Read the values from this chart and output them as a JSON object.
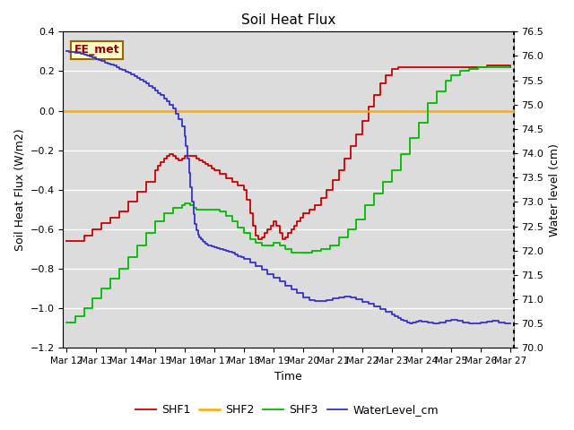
{
  "title": "Soil Heat Flux",
  "xlabel": "Time",
  "ylabel_left": "Soil Heat Flux (W/m2)",
  "ylabel_right": "Water level (cm)",
  "ylim_left": [
    -1.2,
    0.4
  ],
  "ylim_right": [
    70.0,
    76.5
  ],
  "bg_color": "#dcdcdc",
  "legend_label": "EE_met",
  "x_ticks": [
    "Mar 12",
    "Mar 13",
    "Mar 14",
    "Mar 15",
    "Mar 16",
    "Mar 17",
    "Mar 18",
    "Mar 19",
    "Mar 20",
    "Mar 21",
    "Mar 22",
    "Mar 23",
    "Mar 24",
    "Mar 25",
    "Mar 26",
    "Mar 27"
  ],
  "shf1_color": "#cc0000",
  "shf2_color": "#ffaa00",
  "shf3_color": "#00bb00",
  "wl_color": "#3333cc",
  "shf1_x": [
    0,
    0.3,
    0.6,
    0.9,
    1.2,
    1.5,
    1.8,
    2.1,
    2.4,
    2.7,
    3.0,
    3.1,
    3.2,
    3.3,
    3.4,
    3.5,
    3.6,
    3.7,
    3.8,
    3.9,
    4.0,
    4.1,
    4.2,
    4.3,
    4.4,
    4.5,
    4.6,
    4.7,
    4.8,
    4.9,
    5.0,
    5.2,
    5.4,
    5.6,
    5.8,
    6.0,
    6.1,
    6.2,
    6.3,
    6.4,
    6.5,
    6.6,
    6.7,
    6.8,
    6.9,
    7.0,
    7.1,
    7.2,
    7.3,
    7.4,
    7.5,
    7.6,
    7.7,
    7.8,
    7.9,
    8.0,
    8.2,
    8.4,
    8.6,
    8.8,
    9.0,
    9.2,
    9.4,
    9.6,
    9.8,
    10.0,
    10.2,
    10.4,
    10.6,
    10.8,
    11.0,
    11.2,
    11.4,
    11.6,
    11.8,
    12.0,
    12.2,
    12.5,
    12.8,
    13.0,
    13.2,
    13.5,
    13.8,
    14.0,
    14.2,
    14.5,
    14.8,
    15.0
  ],
  "shf1_y": [
    -0.66,
    -0.66,
    -0.63,
    -0.6,
    -0.57,
    -0.54,
    -0.51,
    -0.46,
    -0.41,
    -0.36,
    -0.3,
    -0.28,
    -0.26,
    -0.24,
    -0.23,
    -0.22,
    -0.23,
    -0.24,
    -0.25,
    -0.24,
    -0.23,
    -0.23,
    -0.23,
    -0.23,
    -0.24,
    -0.25,
    -0.26,
    -0.27,
    -0.28,
    -0.29,
    -0.3,
    -0.32,
    -0.34,
    -0.36,
    -0.38,
    -0.4,
    -0.45,
    -0.52,
    -0.58,
    -0.63,
    -0.65,
    -0.64,
    -0.62,
    -0.6,
    -0.58,
    -0.56,
    -0.58,
    -0.62,
    -0.65,
    -0.64,
    -0.62,
    -0.6,
    -0.58,
    -0.56,
    -0.54,
    -0.52,
    -0.5,
    -0.48,
    -0.44,
    -0.4,
    -0.35,
    -0.3,
    -0.24,
    -0.18,
    -0.12,
    -0.05,
    0.02,
    0.08,
    0.14,
    0.18,
    0.21,
    0.22,
    0.22,
    0.22,
    0.22,
    0.22,
    0.22,
    0.22,
    0.22,
    0.22,
    0.22,
    0.22,
    0.22,
    0.22,
    0.23,
    0.23,
    0.23,
    0.22
  ],
  "shf3_x": [
    0,
    0.3,
    0.6,
    0.9,
    1.2,
    1.5,
    1.8,
    2.1,
    2.4,
    2.7,
    3.0,
    3.3,
    3.6,
    3.9,
    4.0,
    4.1,
    4.2,
    4.3,
    4.4,
    4.5,
    4.6,
    4.7,
    4.8,
    4.9,
    5.0,
    5.2,
    5.4,
    5.6,
    5.8,
    6.0,
    6.2,
    6.4,
    6.6,
    6.8,
    7.0,
    7.2,
    7.4,
    7.6,
    7.8,
    8.0,
    8.3,
    8.6,
    8.9,
    9.2,
    9.5,
    9.8,
    10.1,
    10.4,
    10.7,
    11.0,
    11.3,
    11.6,
    11.9,
    12.2,
    12.5,
    12.8,
    13.0,
    13.3,
    13.6,
    13.9,
    14.2,
    14.5,
    14.8,
    15.0
  ],
  "shf3_y": [
    -1.07,
    -1.04,
    -1.0,
    -0.95,
    -0.9,
    -0.85,
    -0.8,
    -0.74,
    -0.68,
    -0.62,
    -0.56,
    -0.52,
    -0.49,
    -0.48,
    -0.47,
    -0.47,
    -0.48,
    -0.49,
    -0.5,
    -0.5,
    -0.5,
    -0.5,
    -0.5,
    -0.5,
    -0.5,
    -0.51,
    -0.53,
    -0.56,
    -0.59,
    -0.62,
    -0.65,
    -0.67,
    -0.68,
    -0.68,
    -0.67,
    -0.68,
    -0.7,
    -0.72,
    -0.72,
    -0.72,
    -0.71,
    -0.7,
    -0.68,
    -0.64,
    -0.6,
    -0.55,
    -0.48,
    -0.42,
    -0.36,
    -0.3,
    -0.22,
    -0.14,
    -0.06,
    0.04,
    0.1,
    0.15,
    0.18,
    0.2,
    0.21,
    0.22,
    0.22,
    0.22,
    0.22,
    0.22
  ],
  "wl_x": [
    0,
    0.1,
    0.2,
    0.3,
    0.4,
    0.5,
    0.6,
    0.7,
    0.8,
    0.9,
    1.0,
    1.1,
    1.2,
    1.3,
    1.4,
    1.5,
    1.6,
    1.7,
    1.8,
    1.9,
    2.0,
    2.1,
    2.2,
    2.3,
    2.4,
    2.5,
    2.6,
    2.7,
    2.8,
    2.9,
    3.0,
    3.1,
    3.2,
    3.3,
    3.4,
    3.5,
    3.6,
    3.7,
    3.8,
    3.9,
    4.0,
    4.05,
    4.1,
    4.15,
    4.2,
    4.25,
    4.3,
    4.35,
    4.4,
    4.45,
    4.5,
    4.55,
    4.6,
    4.65,
    4.7,
    4.75,
    4.8,
    4.85,
    4.9,
    4.95,
    5.0,
    5.1,
    5.2,
    5.3,
    5.4,
    5.5,
    5.6,
    5.7,
    5.8,
    5.9,
    6.0,
    6.2,
    6.4,
    6.6,
    6.8,
    7.0,
    7.2,
    7.4,
    7.6,
    7.8,
    8.0,
    8.2,
    8.4,
    8.6,
    8.8,
    9.0,
    9.2,
    9.4,
    9.6,
    9.8,
    10.0,
    10.2,
    10.4,
    10.6,
    10.8,
    11.0,
    11.1,
    11.2,
    11.3,
    11.4,
    11.5,
    11.6,
    11.7,
    11.8,
    11.9,
    12.0,
    12.2,
    12.4,
    12.6,
    12.8,
    13.0,
    13.2,
    13.4,
    13.6,
    13.8,
    14.0,
    14.2,
    14.4,
    14.6,
    14.8,
    15.0
  ],
  "wl_y": [
    76.1,
    76.09,
    76.08,
    76.07,
    76.06,
    76.05,
    76.03,
    76.01,
    75.99,
    75.97,
    75.94,
    75.92,
    75.9,
    75.87,
    75.85,
    75.82,
    75.8,
    75.77,
    75.74,
    75.71,
    75.68,
    75.65,
    75.62,
    75.59,
    75.55,
    75.51,
    75.47,
    75.43,
    75.39,
    75.34,
    75.29,
    75.24,
    75.19,
    75.13,
    75.07,
    75.0,
    74.92,
    74.82,
    74.7,
    74.55,
    74.35,
    74.15,
    73.9,
    73.6,
    73.3,
    73.0,
    72.75,
    72.55,
    72.42,
    72.33,
    72.27,
    72.23,
    72.2,
    72.17,
    72.15,
    72.13,
    72.11,
    72.1,
    72.09,
    72.08,
    72.07,
    72.05,
    72.03,
    72.01,
    71.99,
    71.97,
    71.95,
    71.92,
    71.89,
    71.86,
    71.82,
    71.75,
    71.68,
    71.6,
    71.52,
    71.44,
    71.36,
    71.28,
    71.2,
    71.12,
    71.04,
    70.98,
    70.96,
    70.97,
    70.99,
    71.02,
    71.04,
    71.05,
    71.03,
    71.0,
    70.95,
    70.9,
    70.85,
    70.8,
    70.74,
    70.68,
    70.65,
    70.62,
    70.58,
    70.55,
    70.52,
    70.5,
    70.52,
    70.54,
    70.55,
    70.54,
    70.52,
    70.5,
    70.52,
    70.55,
    70.57,
    70.55,
    70.52,
    70.5,
    70.5,
    70.52,
    70.54,
    70.55,
    70.52,
    70.5,
    70.5
  ]
}
